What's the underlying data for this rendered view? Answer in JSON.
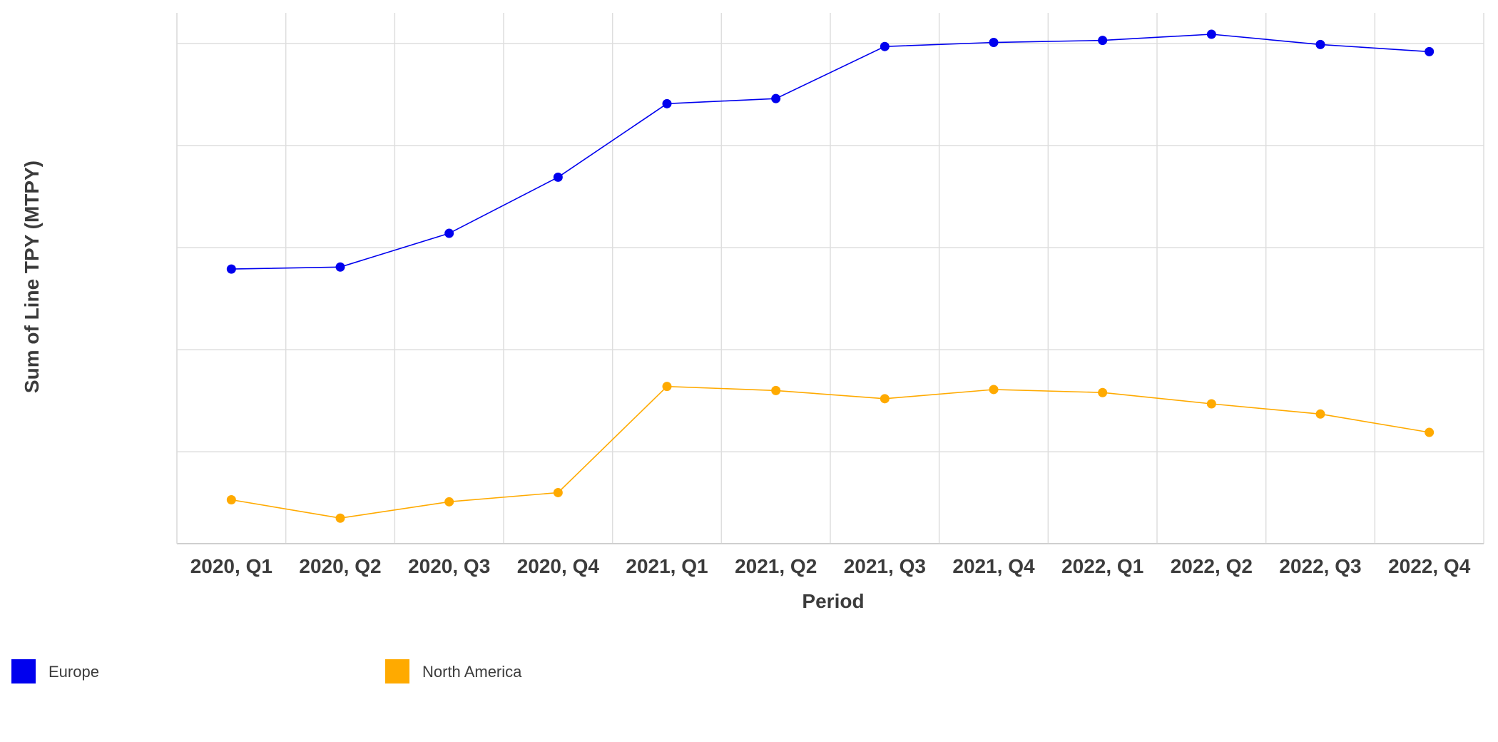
{
  "chart_data": {
    "type": "line",
    "title": "",
    "xlabel": "Period",
    "ylabel": "Sum of Line TPY (MTPY)",
    "categories": [
      "2020, Q1",
      "2020, Q2",
      "2020, Q3",
      "2020, Q4",
      "2021, Q1",
      "2021, Q2",
      "2021, Q3",
      "2021, Q4",
      "2022, Q1",
      "2022, Q2",
      "2022, Q3",
      "2022, Q4"
    ],
    "ylim": [
      0,
      5.2
    ],
    "y_gridlines": [
      0.9,
      1.9,
      2.9,
      3.9,
      4.9
    ],
    "y_tick_labels_shown": false,
    "grid": true,
    "legend_position": "bottom-left",
    "series": [
      {
        "name": "Europe",
        "color": "#0000ee",
        "values": [
          2.69,
          2.71,
          3.04,
          3.59,
          4.31,
          4.36,
          4.87,
          4.91,
          4.93,
          4.99,
          4.89,
          4.82
        ]
      },
      {
        "name": "North America",
        "color": "#ffaa00",
        "values": [
          0.43,
          0.25,
          0.41,
          0.5,
          1.54,
          1.5,
          1.42,
          1.51,
          1.48,
          1.37,
          1.27,
          1.09
        ]
      }
    ]
  }
}
